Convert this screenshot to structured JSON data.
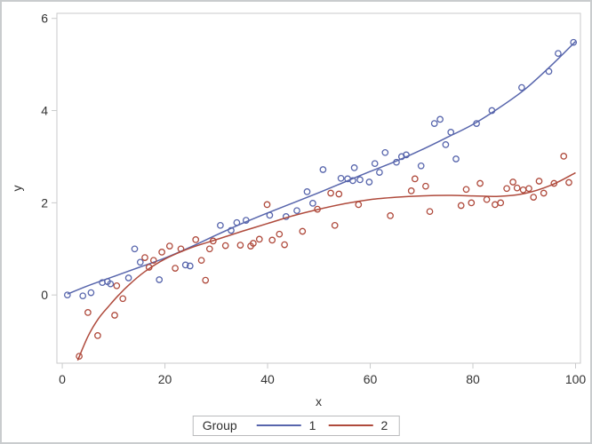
{
  "figure": {
    "background": "#ffffff",
    "border_color": "#c9ccce",
    "frame_color": "#c9cacb",
    "text_color": "#333333"
  },
  "chart_data": {
    "type": "scatter",
    "title": "",
    "xlabel": "x",
    "ylabel": "y",
    "xlim": [
      -1.05,
      100.95
    ],
    "ylim": [
      -1.48,
      6.11
    ],
    "xticks": [
      0,
      20,
      40,
      60,
      80,
      100
    ],
    "yticks": [
      0,
      2,
      4,
      6
    ],
    "grid": false,
    "legend": {
      "title": "Group",
      "position": "bottom",
      "entries": [
        {
          "label": "1",
          "color": "#5765ac"
        },
        {
          "label": "2",
          "color": "#af4a3c"
        }
      ]
    },
    "series": [
      {
        "name": "1",
        "color": "#5765ac",
        "marker": "open-circle",
        "points": [
          [
            1,
            0.0
          ],
          [
            4,
            -0.02
          ],
          [
            5.6,
            0.05
          ],
          [
            7.8,
            0.27
          ],
          [
            8.8,
            0.29
          ],
          [
            9.4,
            0.24
          ],
          [
            12.9,
            0.37
          ],
          [
            14.1,
            1.0
          ],
          [
            15.2,
            0.71
          ],
          [
            18.9,
            0.33
          ],
          [
            24.0,
            0.65
          ],
          [
            24.9,
            0.63
          ],
          [
            30.8,
            1.51
          ],
          [
            32.9,
            1.4
          ],
          [
            34.0,
            1.57
          ],
          [
            35.8,
            1.62
          ],
          [
            40.4,
            1.73
          ],
          [
            43.6,
            1.7
          ],
          [
            45.7,
            1.83
          ],
          [
            47.7,
            2.24
          ],
          [
            48.8,
            1.99
          ],
          [
            50.8,
            2.72
          ],
          [
            54.3,
            2.53
          ],
          [
            55.6,
            2.52
          ],
          [
            56.6,
            2.48
          ],
          [
            56.9,
            2.76
          ],
          [
            58.0,
            2.5
          ],
          [
            59.8,
            2.45
          ],
          [
            60.9,
            2.85
          ],
          [
            61.8,
            2.66
          ],
          [
            62.9,
            3.09
          ],
          [
            65.1,
            2.88
          ],
          [
            66.1,
            3.0
          ],
          [
            67.0,
            3.04
          ],
          [
            69.9,
            2.8
          ],
          [
            72.5,
            3.72
          ],
          [
            73.6,
            3.81
          ],
          [
            74.7,
            3.26
          ],
          [
            75.7,
            3.53
          ],
          [
            76.7,
            2.95
          ],
          [
            80.7,
            3.72
          ],
          [
            83.7,
            4.0
          ],
          [
            89.5,
            4.5
          ],
          [
            94.8,
            4.85
          ],
          [
            96.6,
            5.24
          ],
          [
            99.6,
            5.48
          ]
        ],
        "curve": [
          [
            1,
            0.02
          ],
          [
            5,
            0.2
          ],
          [
            10,
            0.4
          ],
          [
            15,
            0.6
          ],
          [
            20,
            0.8
          ],
          [
            25,
            1.04
          ],
          [
            30,
            1.3
          ],
          [
            35,
            1.55
          ],
          [
            40,
            1.78
          ],
          [
            45,
            2.0
          ],
          [
            50,
            2.22
          ],
          [
            55,
            2.45
          ],
          [
            60,
            2.68
          ],
          [
            65,
            2.9
          ],
          [
            70,
            3.15
          ],
          [
            75,
            3.42
          ],
          [
            80,
            3.7
          ],
          [
            85,
            4.05
          ],
          [
            90,
            4.45
          ],
          [
            95,
            4.95
          ],
          [
            100,
            5.5
          ]
        ]
      },
      {
        "name": "2",
        "color": "#af4a3c",
        "marker": "open-circle",
        "points": [
          [
            3.3,
            -1.33
          ],
          [
            5.0,
            -0.38
          ],
          [
            6.9,
            -0.88
          ],
          [
            10.2,
            -0.44
          ],
          [
            10.6,
            0.2
          ],
          [
            11.8,
            -0.08
          ],
          [
            16.1,
            0.81
          ],
          [
            16.9,
            0.6
          ],
          [
            17.8,
            0.75
          ],
          [
            19.4,
            0.93
          ],
          [
            20.9,
            1.06
          ],
          [
            22.0,
            0.58
          ],
          [
            23.1,
            1.0
          ],
          [
            26.0,
            1.2
          ],
          [
            27.1,
            0.75
          ],
          [
            27.9,
            0.32
          ],
          [
            28.7,
            1.0
          ],
          [
            29.4,
            1.17
          ],
          [
            31.8,
            1.07
          ],
          [
            34.7,
            1.08
          ],
          [
            36.7,
            1.06
          ],
          [
            37.2,
            1.12
          ],
          [
            38.4,
            1.21
          ],
          [
            39.9,
            1.96
          ],
          [
            40.9,
            1.19
          ],
          [
            42.3,
            1.32
          ],
          [
            43.3,
            1.09
          ],
          [
            46.8,
            1.38
          ],
          [
            49.7,
            1.86
          ],
          [
            52.3,
            2.21
          ],
          [
            53.1,
            1.51
          ],
          [
            53.9,
            2.19
          ],
          [
            57.7,
            1.96
          ],
          [
            63.9,
            1.72
          ],
          [
            68.0,
            2.26
          ],
          [
            68.7,
            2.52
          ],
          [
            70.8,
            2.36
          ],
          [
            71.6,
            1.81
          ],
          [
            77.7,
            1.94
          ],
          [
            78.7,
            2.29
          ],
          [
            79.7,
            2.0
          ],
          [
            81.4,
            2.42
          ],
          [
            82.7,
            2.07
          ],
          [
            84.3,
            1.96
          ],
          [
            85.4,
            2.0
          ],
          [
            86.6,
            2.31
          ],
          [
            87.8,
            2.45
          ],
          [
            88.6,
            2.32
          ],
          [
            89.8,
            2.28
          ],
          [
            90.9,
            2.31
          ],
          [
            91.8,
            2.12
          ],
          [
            92.9,
            2.47
          ],
          [
            93.8,
            2.21
          ],
          [
            95.8,
            2.42
          ],
          [
            97.7,
            3.01
          ],
          [
            98.7,
            2.44
          ]
        ],
        "curve": [
          [
            3,
            -1.42
          ],
          [
            5,
            -0.9
          ],
          [
            7,
            -0.52
          ],
          [
            9,
            -0.25
          ],
          [
            11,
            0.0
          ],
          [
            13,
            0.22
          ],
          [
            16,
            0.5
          ],
          [
            20,
            0.78
          ],
          [
            25,
            1.02
          ],
          [
            30,
            1.2
          ],
          [
            35,
            1.38
          ],
          [
            40,
            1.55
          ],
          [
            45,
            1.72
          ],
          [
            50,
            1.86
          ],
          [
            55,
            1.98
          ],
          [
            60,
            2.07
          ],
          [
            65,
            2.12
          ],
          [
            70,
            2.15
          ],
          [
            75,
            2.16
          ],
          [
            80,
            2.15
          ],
          [
            85,
            2.14
          ],
          [
            90,
            2.2
          ],
          [
            95,
            2.37
          ],
          [
            100,
            2.65
          ]
        ]
      }
    ]
  }
}
